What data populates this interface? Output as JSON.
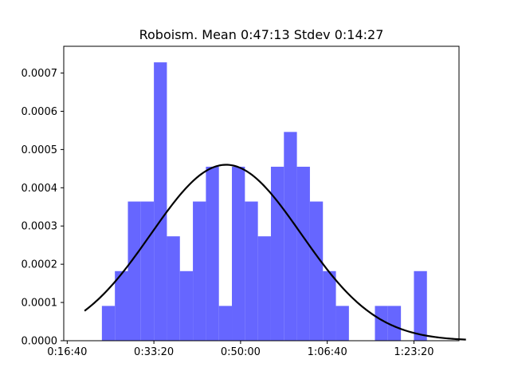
{
  "chart_data": {
    "type": "bar",
    "title": "Roboism. Mean 0:47:13 Stdev 0:14:27",
    "xlabel": "",
    "ylabel": "",
    "bar_color": "#6666ff",
    "curve_color": "#000000",
    "xlim": [
      960,
      5520
    ],
    "ylim": [
      0,
      0.00077
    ],
    "x_ticks": [
      {
        "value": 1000,
        "label": "0:16:40"
      },
      {
        "value": 2000,
        "label": "0:33:20"
      },
      {
        "value": 3000,
        "label": "0:50:00"
      },
      {
        "value": 4000,
        "label": "1:06:40"
      },
      {
        "value": 5000,
        "label": "1:23:20"
      }
    ],
    "y_ticks": [
      {
        "value": 0.0,
        "label": "0.0000"
      },
      {
        "value": 0.0001,
        "label": "0.0001"
      },
      {
        "value": 0.0002,
        "label": "0.0002"
      },
      {
        "value": 0.0003,
        "label": "0.0003"
      },
      {
        "value": 0.0004,
        "label": "0.0004"
      },
      {
        "value": 0.0005,
        "label": "0.0005"
      },
      {
        "value": 0.0006,
        "label": "0.0006"
      },
      {
        "value": 0.0007,
        "label": "0.0007"
      }
    ],
    "bins": [
      {
        "x0": 1400,
        "x1": 1550,
        "value": 9.1e-05
      },
      {
        "x0": 1550,
        "x1": 1700,
        "value": 0.000182
      },
      {
        "x0": 1700,
        "x1": 1850,
        "value": 0.000364
      },
      {
        "x0": 1850,
        "x1": 2000,
        "value": 0.000364
      },
      {
        "x0": 2000,
        "x1": 2150,
        "value": 0.000728
      },
      {
        "x0": 2150,
        "x1": 2300,
        "value": 0.000273
      },
      {
        "x0": 2300,
        "x1": 2450,
        "value": 0.000182
      },
      {
        "x0": 2450,
        "x1": 2600,
        "value": 0.000364
      },
      {
        "x0": 2600,
        "x1": 2750,
        "value": 0.000455
      },
      {
        "x0": 2750,
        "x1": 2900,
        "value": 9.1e-05
      },
      {
        "x0": 2900,
        "x1": 3050,
        "value": 0.000455
      },
      {
        "x0": 3050,
        "x1": 3200,
        "value": 0.000364
      },
      {
        "x0": 3200,
        "x1": 3350,
        "value": 0.000273
      },
      {
        "x0": 3350,
        "x1": 3500,
        "value": 0.000455
      },
      {
        "x0": 3500,
        "x1": 3650,
        "value": 0.000546
      },
      {
        "x0": 3650,
        "x1": 3800,
        "value": 0.000455
      },
      {
        "x0": 3800,
        "x1": 3950,
        "value": 0.000364
      },
      {
        "x0": 3950,
        "x1": 4100,
        "value": 0.000182
      },
      {
        "x0": 4100,
        "x1": 4250,
        "value": 9.1e-05
      },
      {
        "x0": 4550,
        "x1": 4700,
        "value": 9.1e-05
      },
      {
        "x0": 4700,
        "x1": 4850,
        "value": 9.1e-05
      },
      {
        "x0": 5000,
        "x1": 5150,
        "value": 0.000182
      }
    ],
    "normal_curve": {
      "mean": 2833,
      "stdev": 867,
      "x_range": [
        1200,
        5600
      ]
    }
  }
}
